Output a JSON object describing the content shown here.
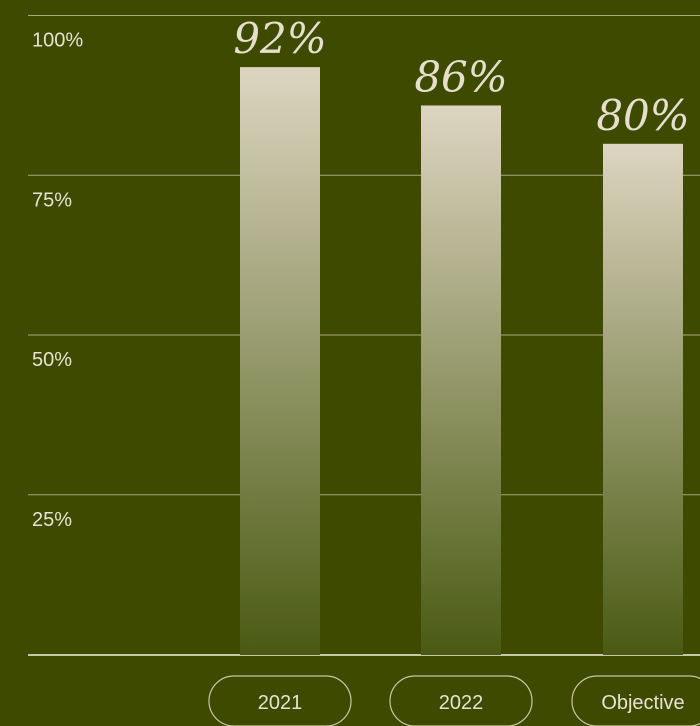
{
  "chart_data": {
    "type": "bar",
    "categories": [
      "2021",
      "2022",
      "Objective"
    ],
    "values": [
      92,
      86,
      80
    ],
    "value_labels": [
      "92%",
      "86%",
      "80%"
    ],
    "ylim": [
      0,
      100
    ],
    "yticks": [
      {
        "value": 25,
        "label": "25%"
      },
      {
        "value": 50,
        "label": "50%"
      },
      {
        "value": 75,
        "label": "75%"
      },
      {
        "value": 100,
        "label": "100%"
      }
    ],
    "title": "",
    "xlabel": "",
    "ylabel": "",
    "grid": true,
    "colors": {
      "background": "#3d4a00",
      "bar_top": "#ddd5c1",
      "bar_bottom": "#4a5a12",
      "grid": "#c9c6a6",
      "text": "#e8e2d0"
    }
  }
}
